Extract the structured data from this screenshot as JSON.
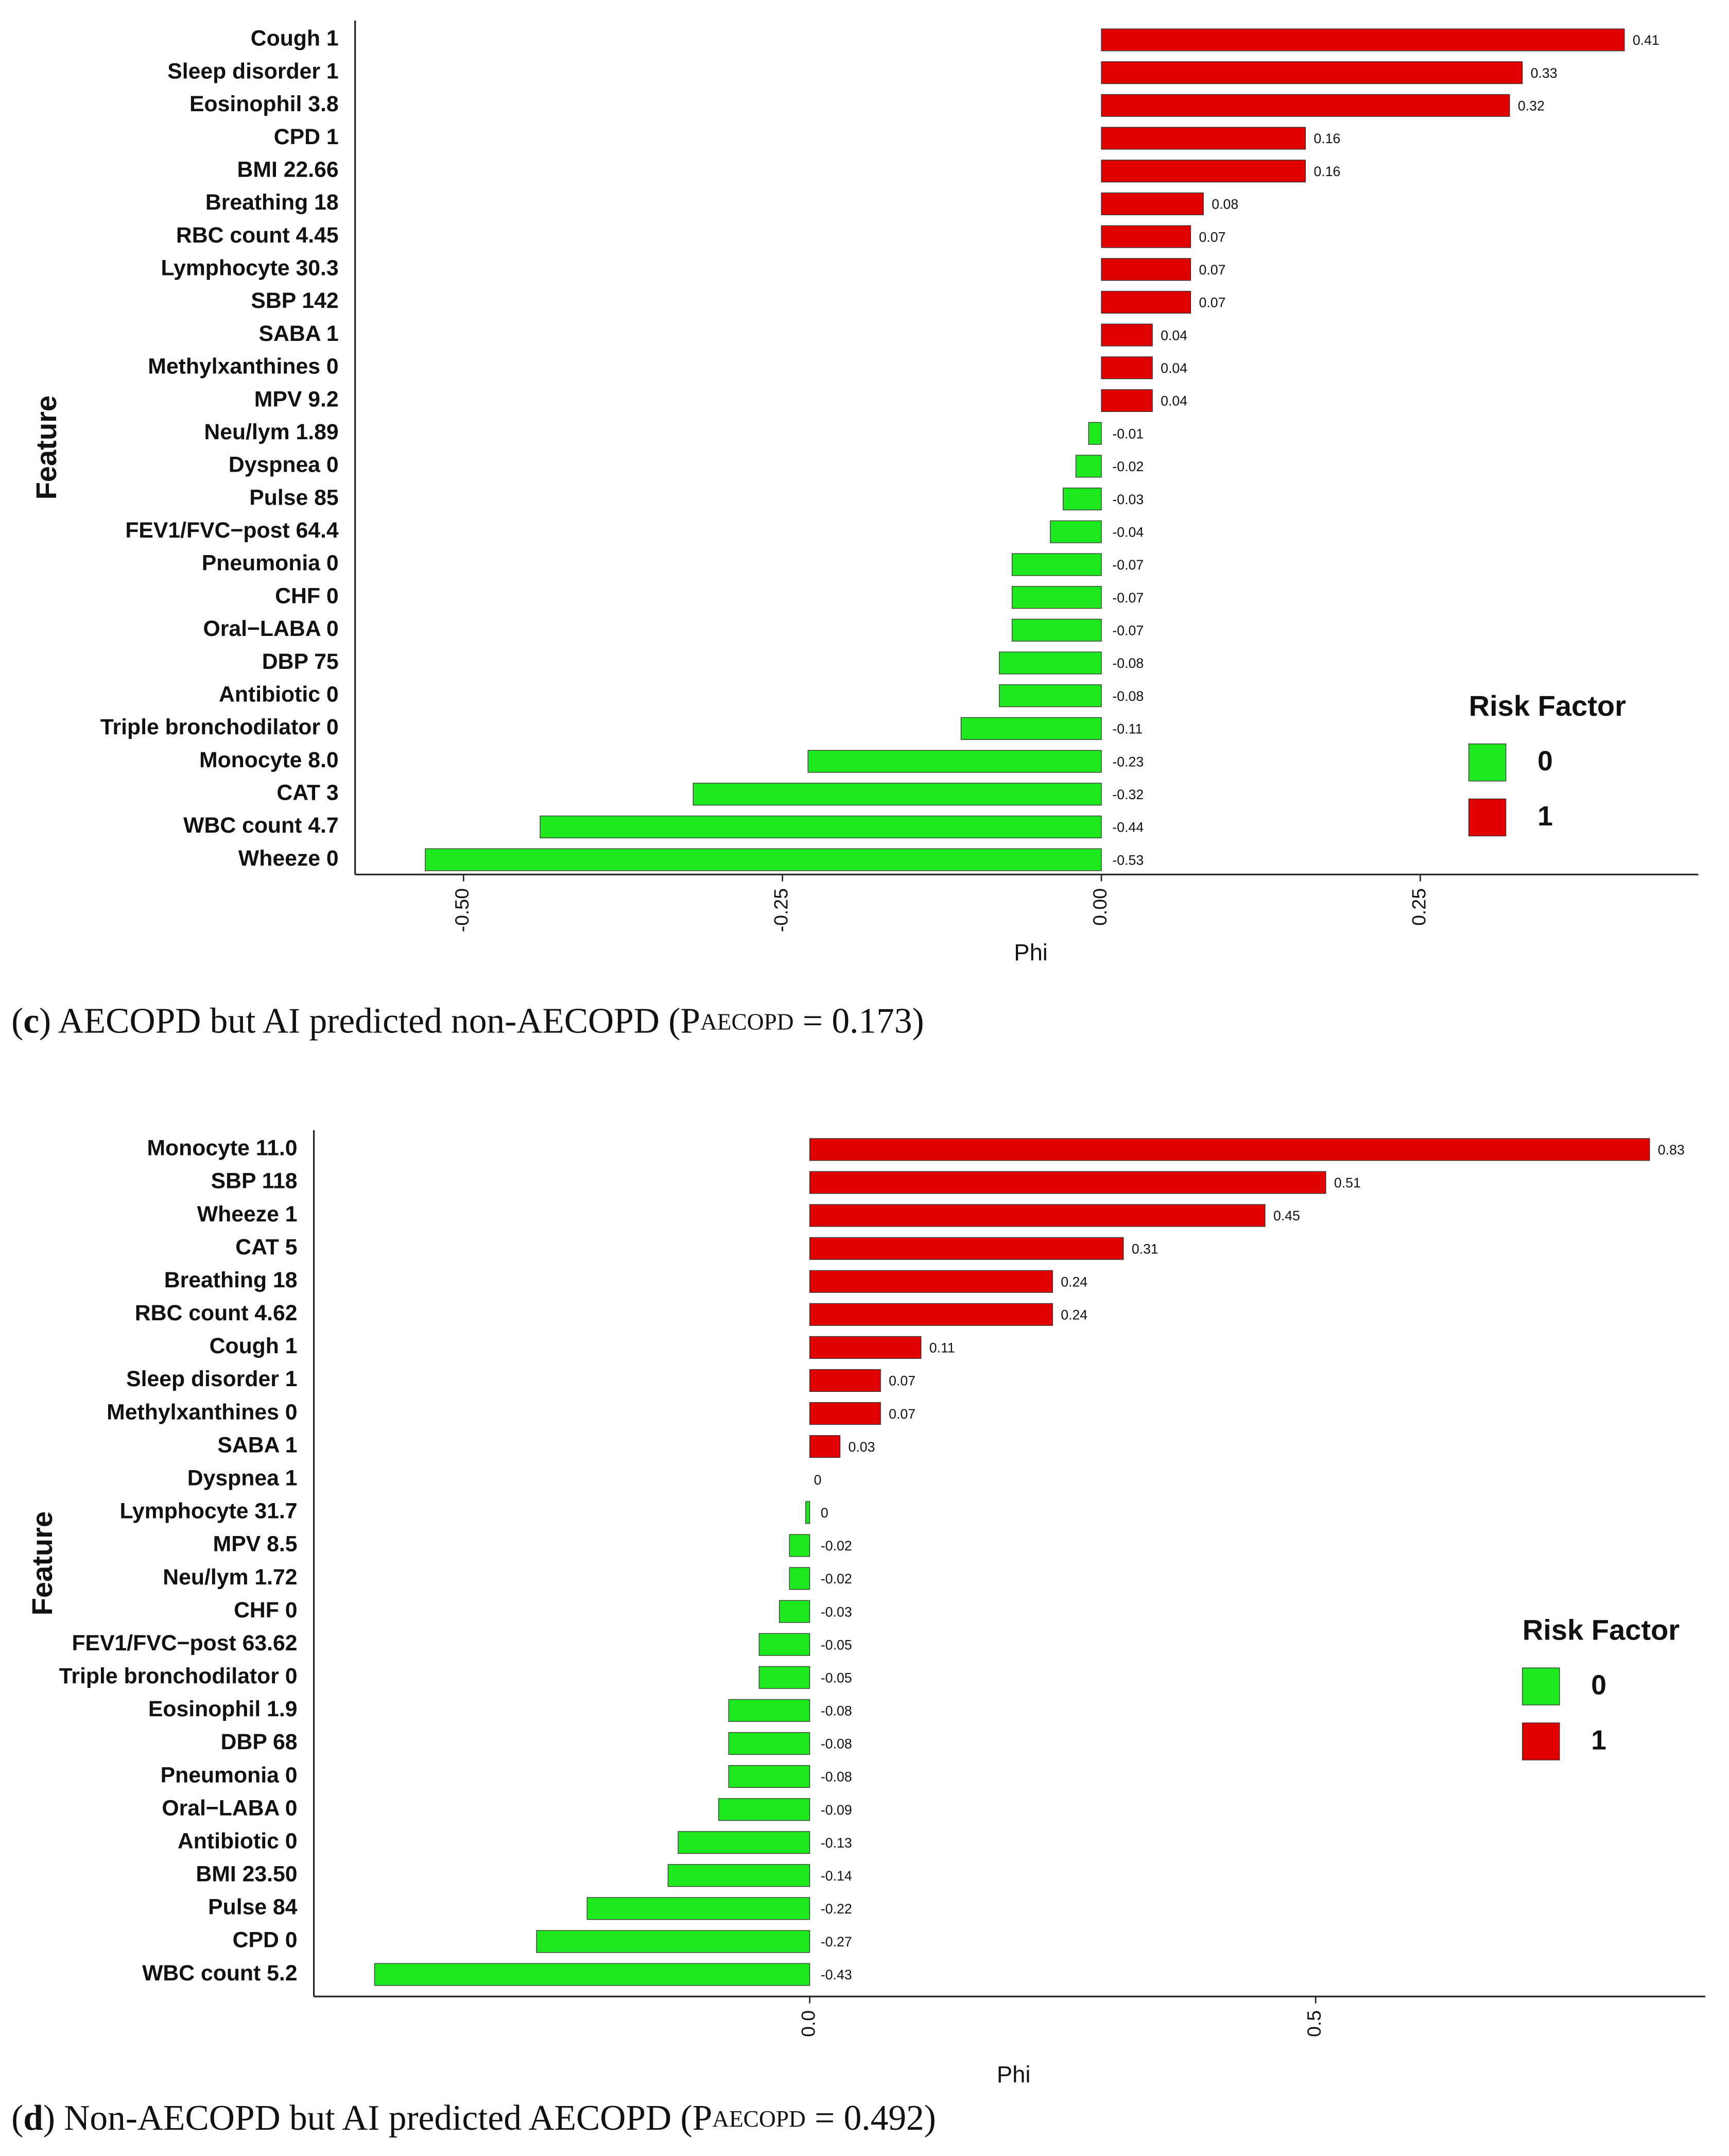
{
  "chart_data": [
    {
      "type": "barh",
      "x_label": "Phi",
      "y_label": "Feature",
      "categories": [
        "Cough 1",
        "Sleep disorder 1",
        "Eosinophil 3.8",
        "CPD 1",
        "BMI 22.66",
        "Breathing 18",
        "RBC count 4.45",
        "Lymphocyte 30.3",
        "SBP 142",
        "SABA 1",
        "Methylxanthines 0",
        "MPV 9.2",
        "Neu/lym 1.89",
        "Dyspnea 0",
        "Pulse 85",
        "FEV1/FVC−post 64.4",
        "Pneumonia 0",
        "CHF 0",
        "Oral−LABA 0",
        "DBP 75",
        "Antibiotic 0",
        "Triple bronchodilator 0",
        "Monocyte 8.0",
        "CAT 3",
        "WBC count 4.7",
        "Wheeze 0"
      ],
      "values": [
        0.41,
        0.33,
        0.32,
        0.16,
        0.16,
        0.08,
        0.07,
        0.07,
        0.07,
        0.04,
        0.04,
        0.04,
        -0.01,
        -0.02,
        -0.03,
        -0.04,
        -0.07,
        -0.07,
        -0.07,
        -0.08,
        -0.08,
        -0.11,
        -0.23,
        -0.32,
        -0.44,
        -0.53
      ],
      "xlim": [
        -0.585,
        0.468
      ],
      "xticks": [
        {
          "value": -0.5,
          "label": "-0.50"
        },
        {
          "value": -0.25,
          "label": "-0.25"
        },
        {
          "value": 0,
          "label": "0.00"
        },
        {
          "value": 0.25,
          "label": "0.25"
        }
      ],
      "legend": {
        "title": "Risk Factor",
        "items": [
          {
            "name": "0",
            "color": "#1ee81e"
          },
          {
            "name": "1",
            "color": "#e00000"
          }
        ]
      },
      "caption": [
        "(",
        "c",
        ") AECOPD but AI predicted non-AECOPD (P",
        "AECOPD",
        " = 0.173)"
      ]
    },
    {
      "type": "barh",
      "x_label": "Phi",
      "y_label": "Feature",
      "categories": [
        "Monocyte 11.0",
        "SBP 118",
        "Wheeze 1",
        "CAT 5",
        "Breathing 18",
        "RBC count 4.62",
        "Cough 1",
        "Sleep disorder 1",
        "Methylxanthines 0",
        "SABA 1",
        "Dyspnea 1",
        "Lymphocyte 31.7",
        "MPV 8.5",
        "Neu/lym 1.72",
        "CHF 0",
        "FEV1/FVC−post 63.62",
        "Triple bronchodilator 0",
        "Eosinophil 1.9",
        "DBP 68",
        "Pneumonia 0",
        "Oral−LABA 0",
        "Antibiotic 0",
        "BMI 23.50",
        "Pulse 84",
        "CPD 0",
        "WBC count 5.2"
      ],
      "values": [
        0.83,
        0.51,
        0.45,
        0.31,
        0.24,
        0.24,
        0.11,
        0.07,
        0.07,
        0.03,
        0,
        -0.004,
        -0.02,
        -0.02,
        -0.03,
        -0.05,
        -0.05,
        -0.08,
        -0.08,
        -0.08,
        -0.09,
        -0.13,
        -0.14,
        -0.22,
        -0.27,
        -0.43
      ],
      "value_labels": [
        "0.83",
        "0.51",
        "0.45",
        "0.31",
        "0.24",
        "0.24",
        "0.11",
        "0.07",
        "0.07",
        "0.03",
        "0",
        "0",
        "-0.02",
        "-0.02",
        "-0.03",
        "-0.05",
        "-0.05",
        "-0.08",
        "-0.08",
        "-0.08",
        "-0.09",
        "-0.13",
        "-0.14",
        "-0.22",
        "-0.27",
        "-0.43"
      ],
      "xlim": [
        -0.49,
        0.885
      ],
      "xticks": [
        {
          "value": 0,
          "label": "0.0"
        },
        {
          "value": 0.5,
          "label": "0.5"
        }
      ],
      "legend": {
        "title": "Risk Factor",
        "items": [
          {
            "name": "0",
            "color": "#1ee81e"
          },
          {
            "name": "1",
            "color": "#e00000"
          }
        ]
      },
      "caption": [
        "(",
        "d",
        ") Non-AECOPD but AI predicted AECOPD (P",
        "AECOPD",
        " = 0.492)"
      ]
    }
  ]
}
